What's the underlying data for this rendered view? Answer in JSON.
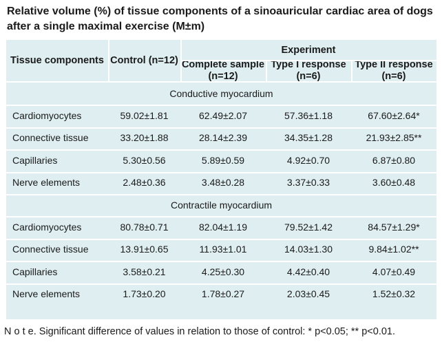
{
  "title": "Relative volume (%) of tissue components of a sinoauricular cardiac area of dogs after a single maximal exercise (M±m)",
  "headers": {
    "tissue": "Tissue components",
    "control": "Control (n=12)",
    "experiment": "Experiment",
    "complete": "Complete sample (n=12)",
    "type1": "Type I response (n=6)",
    "type2": "Type II response (n=6)"
  },
  "sections": [
    {
      "title": "Conductive myocardium",
      "rows": [
        {
          "label": "Cardiomyocytes",
          "values": [
            "59.02±1.81",
            "62.49±2.07",
            "57.36±1.18",
            "67.60±2.64*"
          ]
        },
        {
          "label": "Connective tissue",
          "values": [
            "33.20±1.88",
            "28.14±2.39",
            "34.35±1.28",
            "21.93±2.85**"
          ]
        },
        {
          "label": "Capillaries",
          "values": [
            "5.30±0.56",
            "5.89±0.59",
            "4.92±0.70",
            "6.87±0.80"
          ]
        },
        {
          "label": "Nerve elements",
          "values": [
            "2.48±0.36",
            "3.48±0.28",
            "3.37±0.33",
            "3.60±0.48"
          ]
        }
      ]
    },
    {
      "title": "Contractile myocardium",
      "rows": [
        {
          "label": "Cardiomyocytes",
          "values": [
            "80.78±0.71",
            "82.04±1.19",
            "79.52±1.42",
            "84.57±1.29*"
          ]
        },
        {
          "label": "Connective tissue",
          "values": [
            "13.91±0.65",
            "11.93±1.01",
            "14.03±1.30",
            "9.84±1.02**"
          ]
        },
        {
          "label": "Capillaries",
          "values": [
            "3.58±0.21",
            "4.25±0.30",
            "4.42±0.40",
            "4.07±0.49"
          ]
        },
        {
          "label": "Nerve elements",
          "values": [
            "1.73±0.20",
            "1.78±0.27",
            "2.03±0.45",
            "1.52±0.32"
          ]
        }
      ]
    }
  ],
  "note": "N o t e. Significant difference of values in relation to those of control: * p<0.05; ** p<0.01."
}
